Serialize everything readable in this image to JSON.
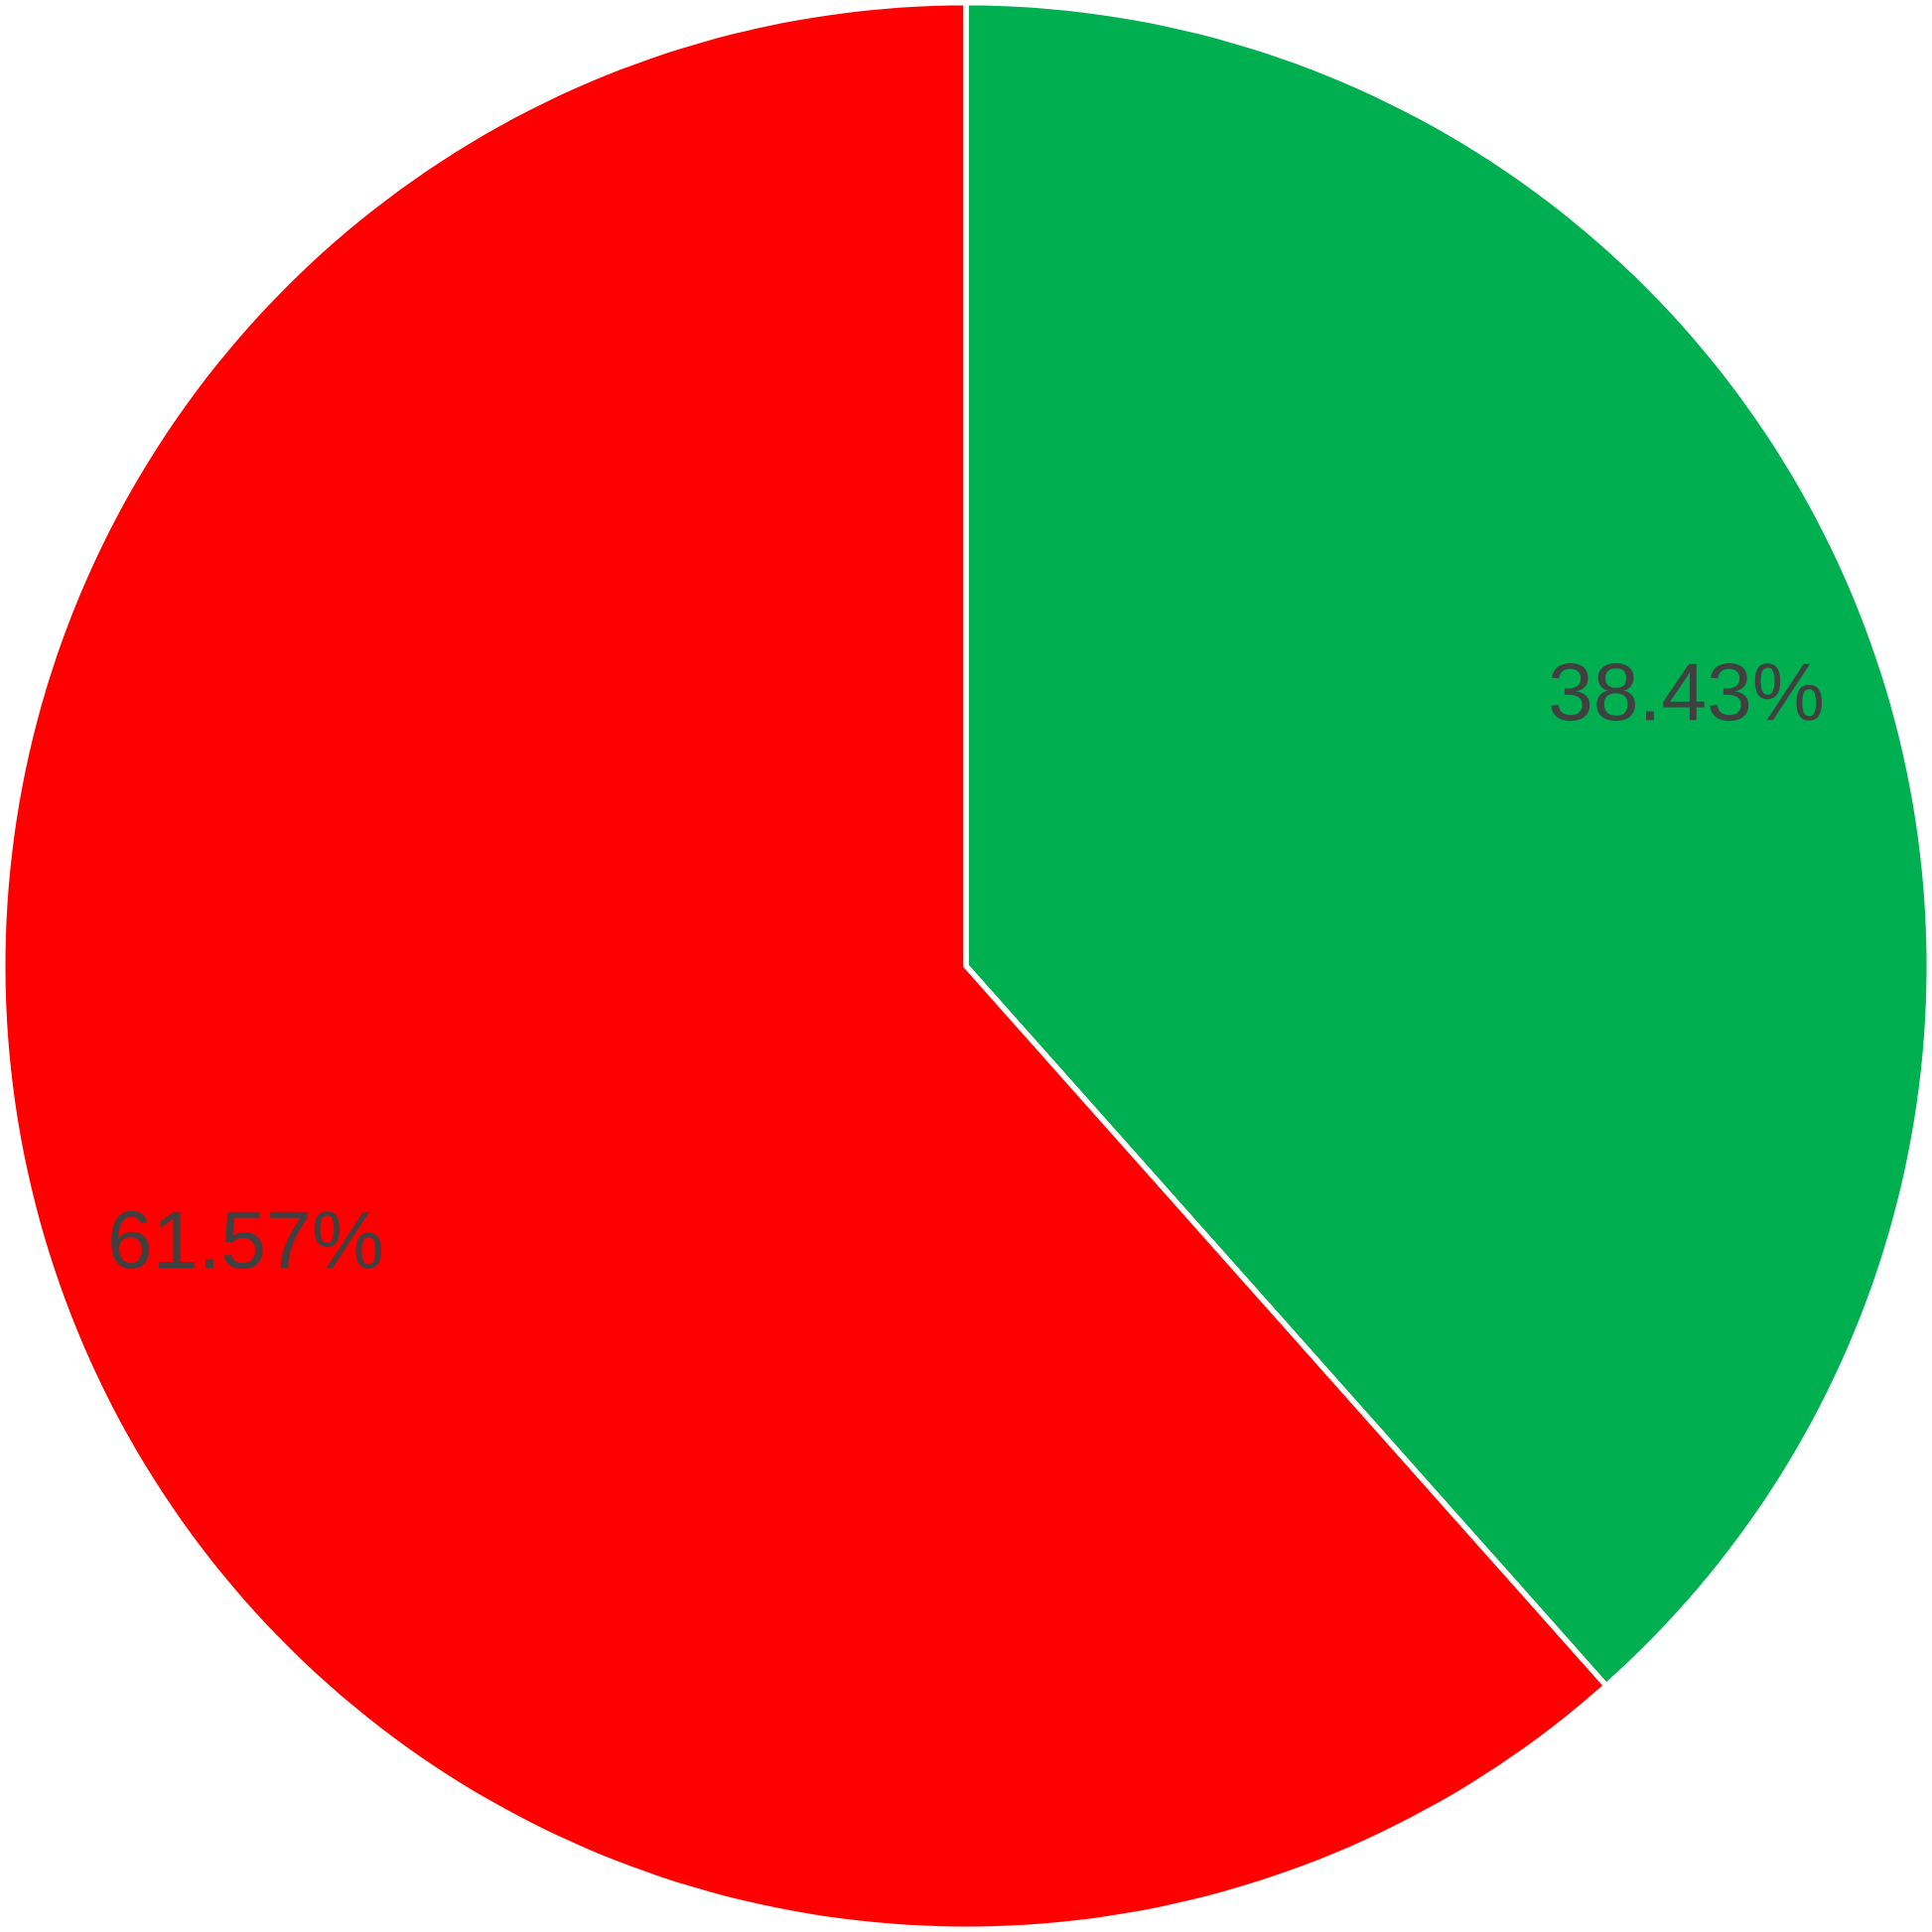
{
  "chart_data": {
    "type": "pie",
    "categories": [
      null,
      null
    ],
    "values": [
      38.43,
      61.57
    ],
    "colors": [
      "#00b050",
      "#ff0000"
    ],
    "value_labels": [
      "38.43%",
      "61.57%"
    ]
  }
}
